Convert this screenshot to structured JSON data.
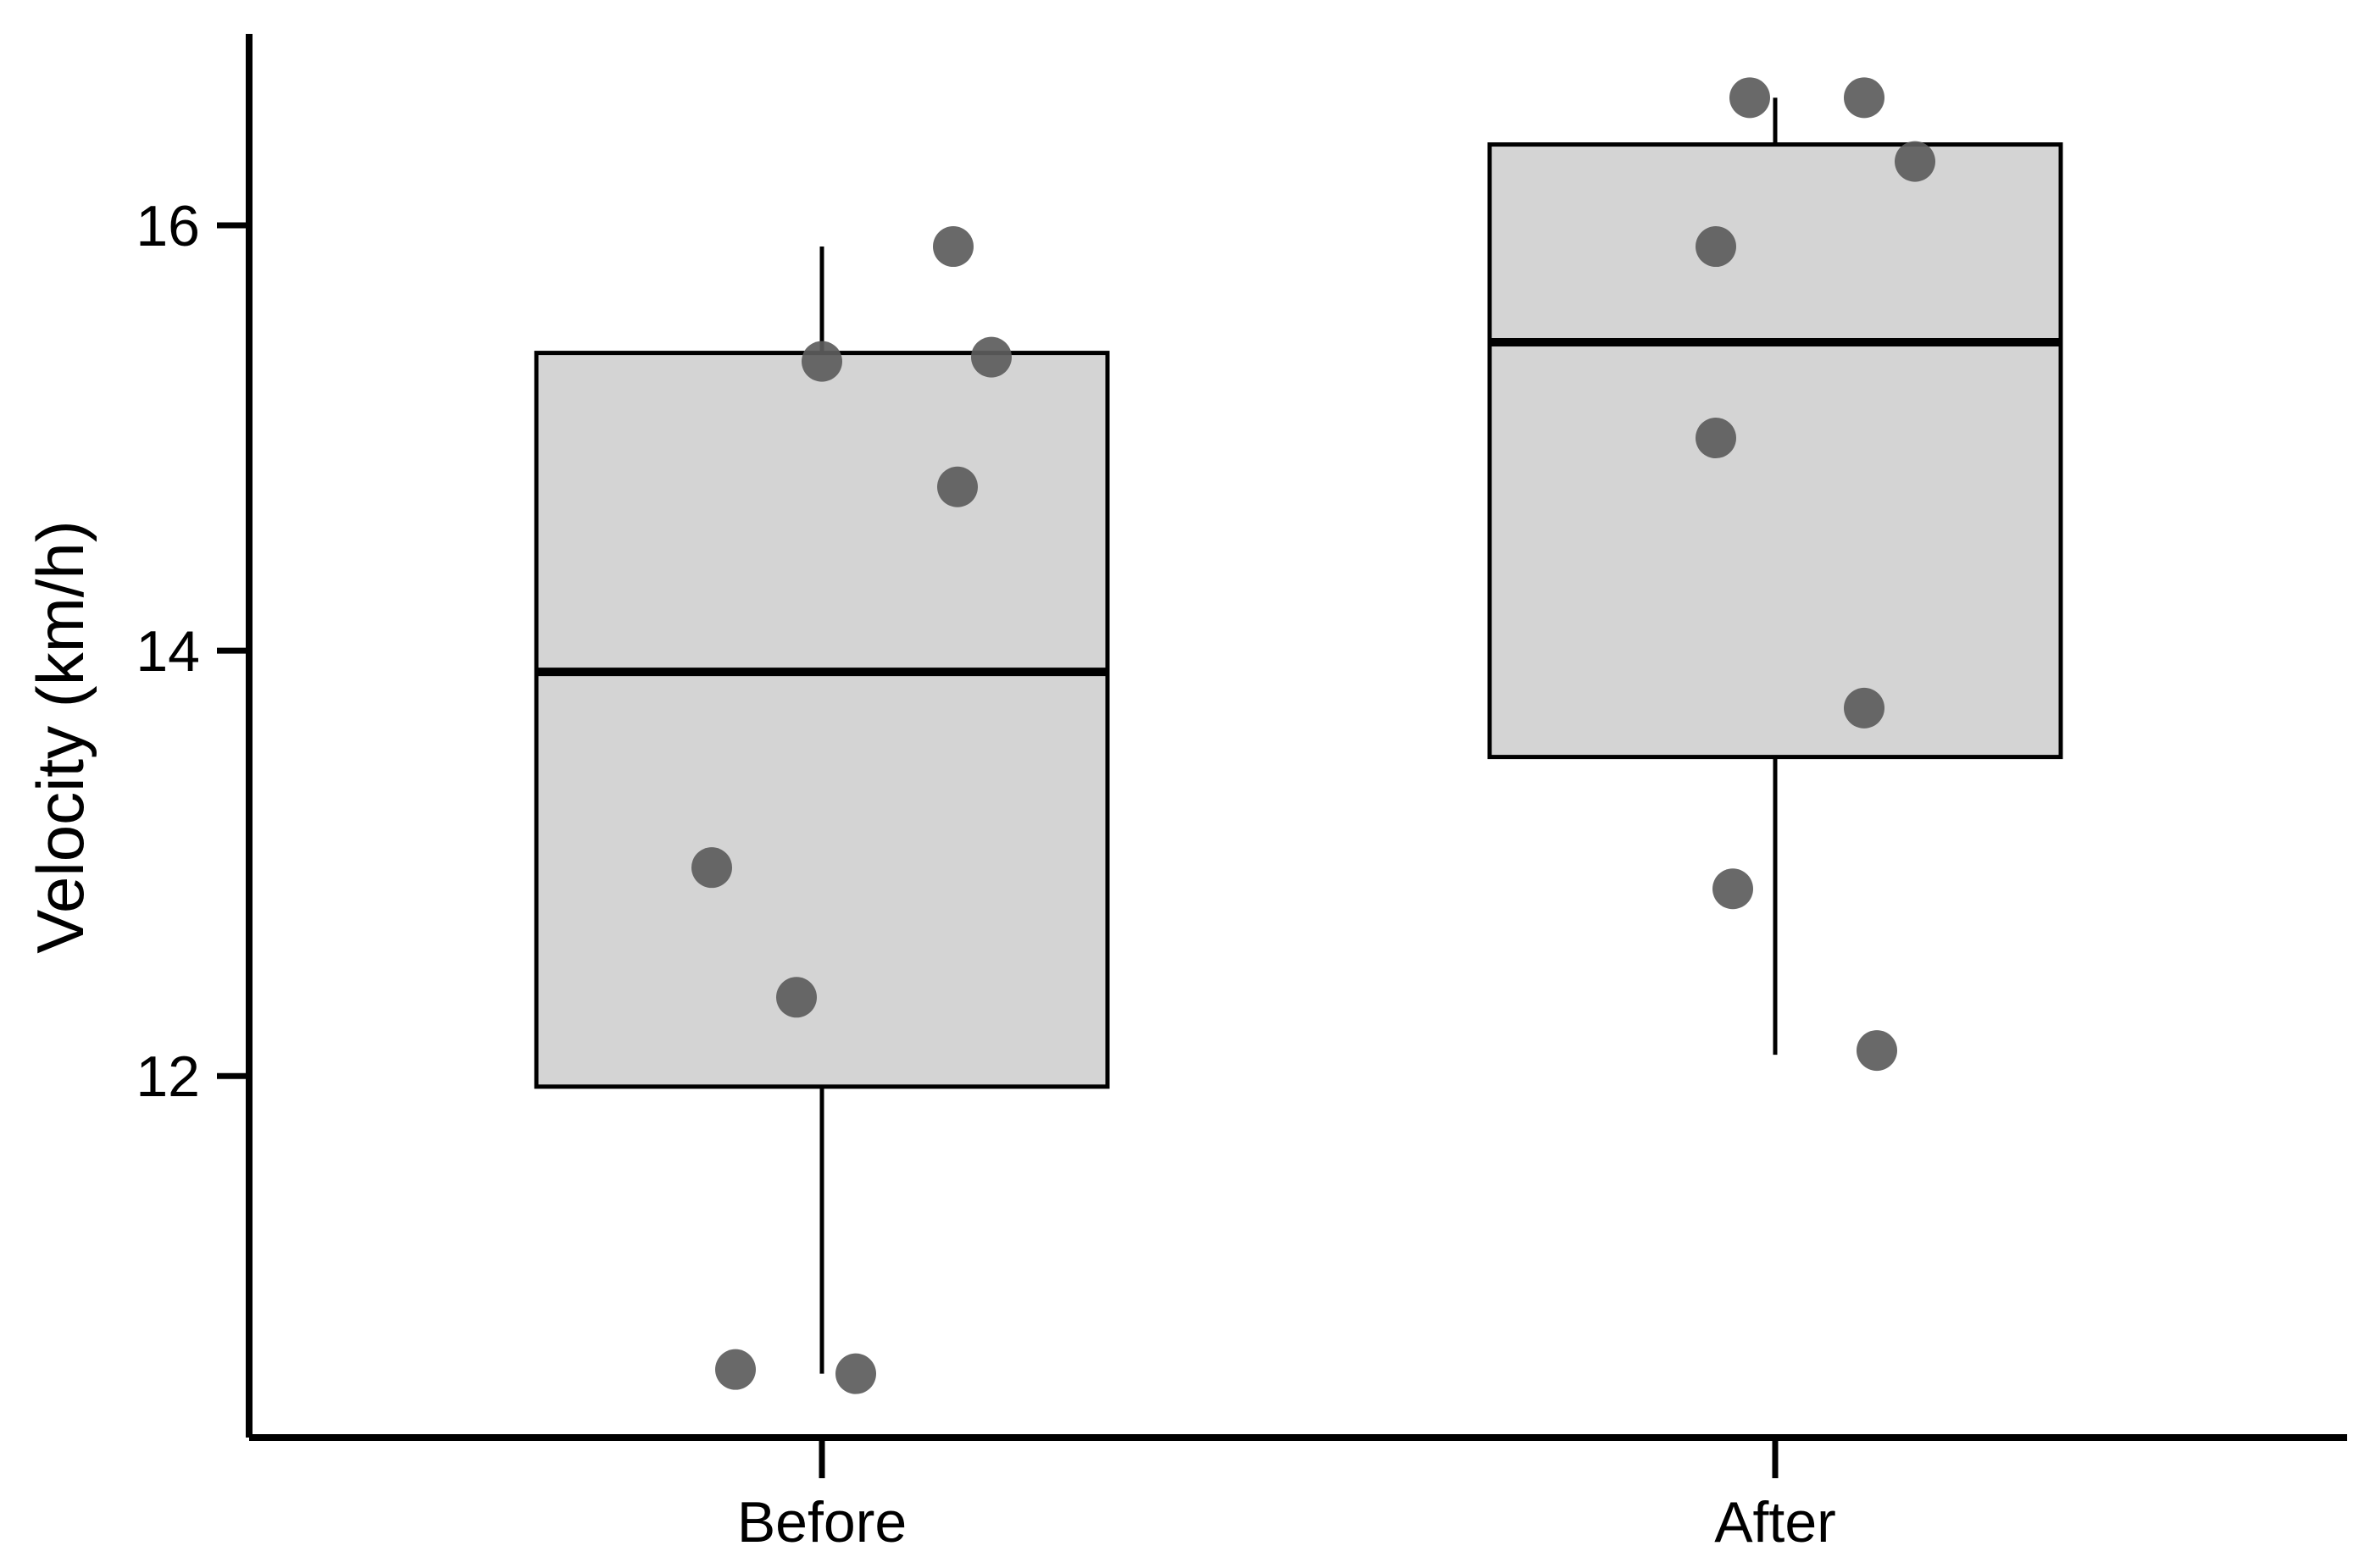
{
  "chart_data": {
    "type": "box",
    "title": "",
    "xlabel": "",
    "ylabel": "Velocity (km/h)",
    "ylim": [
      10.3,
      16.9
    ],
    "yticks": [
      12,
      14,
      16
    ],
    "grid": false,
    "categories": [
      "Before",
      "After"
    ],
    "boxes": [
      {
        "category": "Before",
        "whisker_low": 10.6,
        "q1": 11.95,
        "median": 13.9,
        "q3": 15.4,
        "whisker_high": 15.9,
        "points": [
          15.9,
          15.38,
          15.36,
          14.77,
          12.98,
          12.37,
          10.62,
          10.6
        ]
      },
      {
        "category": "After",
        "whisker_low": 12.1,
        "q1": 13.5,
        "median": 15.45,
        "q3": 16.38,
        "whisker_high": 16.6,
        "points": [
          16.6,
          16.6,
          16.3,
          15.9,
          15.0,
          13.73,
          12.88,
          12.12
        ]
      }
    ],
    "colors": {
      "box_fill": "#d4d4d4",
      "box_stroke": "#000000",
      "point_fill": "#5c5c5c"
    }
  }
}
